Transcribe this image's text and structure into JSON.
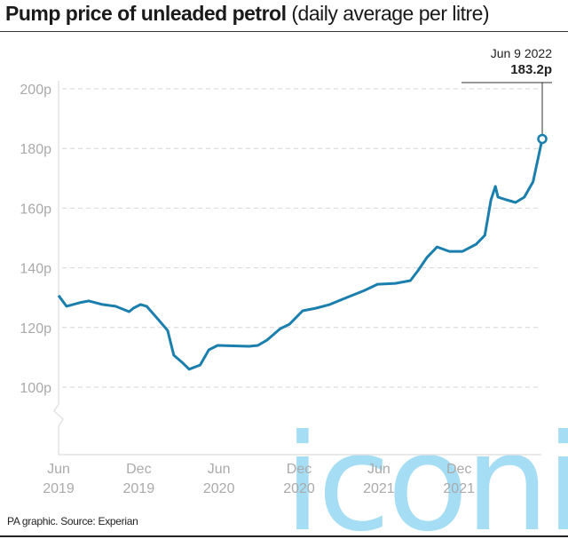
{
  "title": {
    "bold": "Pump price of unleaded petrol",
    "sub": " (daily average per litre)"
  },
  "source": "PA graphic. Source: Experian",
  "watermark": "iconic",
  "colors": {
    "line": "#1a7fad",
    "grid": "#d6d6d6",
    "axis": "#e3e3e3",
    "tick_text": "#aaaaaa"
  },
  "chart_data": {
    "type": "line",
    "title": "Pump price of unleaded petrol (daily average per litre)",
    "xlabel": "",
    "ylabel": "",
    "ylim": [
      77,
      200
    ],
    "y_axis_break": true,
    "grid": "horizontal dashed",
    "y_ticks": [
      "100p",
      "120p",
      "140p",
      "160p",
      "180p",
      "200p"
    ],
    "y_tick_values": [
      100,
      120,
      140,
      160,
      180,
      200
    ],
    "x_ticks": [
      {
        "date": "2019-06-01",
        "label1": "Jun",
        "label2": "2019"
      },
      {
        "date": "2019-12-01",
        "label1": "Dec",
        "label2": "2019"
      },
      {
        "date": "2020-06-01",
        "label1": "Jun",
        "label2": "2020"
      },
      {
        "date": "2020-12-01",
        "label1": "Dec",
        "label2": "2020"
      },
      {
        "date": "2021-06-01",
        "label1": "Jun",
        "label2": "2021"
      },
      {
        "date": "2021-12-01",
        "label1": "Dec",
        "label2": "2021"
      }
    ],
    "annotation": {
      "date": "2022-06-09",
      "date_label": "Jun 9 2022",
      "value": 183.2,
      "value_label": "183.2p"
    },
    "series": [
      {
        "points": [
          [
            "2019-06-01",
            130.7
          ],
          [
            "2019-06-19",
            127.1
          ],
          [
            "2019-07-19",
            128.3
          ],
          [
            "2019-08-09",
            128.9
          ],
          [
            "2019-09-09",
            127.7
          ],
          [
            "2019-10-09",
            127.1
          ],
          [
            "2019-11-09",
            125.3
          ],
          [
            "2019-11-19",
            126.5
          ],
          [
            "2019-12-05",
            127.7
          ],
          [
            "2019-12-19",
            127.1
          ],
          [
            "2020-01-15",
            122.6
          ],
          [
            "2020-02-05",
            119.0
          ],
          [
            "2020-02-19",
            110.7
          ],
          [
            "2020-03-09",
            108.3
          ],
          [
            "2020-03-25",
            106.0
          ],
          [
            "2020-04-19",
            107.4
          ],
          [
            "2020-05-09",
            112.5
          ],
          [
            "2020-05-29",
            114.0
          ],
          [
            "2020-08-09",
            113.7
          ],
          [
            "2020-08-29",
            114.0
          ],
          [
            "2020-09-19",
            115.8
          ],
          [
            "2020-10-19",
            119.6
          ],
          [
            "2020-11-09",
            121.1
          ],
          [
            "2020-12-09",
            125.6
          ],
          [
            "2021-01-09",
            126.5
          ],
          [
            "2021-02-09",
            127.7
          ],
          [
            "2021-03-19",
            130.0
          ],
          [
            "2021-04-29",
            132.4
          ],
          [
            "2021-05-29",
            134.5
          ],
          [
            "2021-07-09",
            134.8
          ],
          [
            "2021-08-12",
            135.7
          ],
          [
            "2021-08-29",
            139.0
          ],
          [
            "2021-09-19",
            143.5
          ],
          [
            "2021-10-12",
            147.0
          ],
          [
            "2021-11-09",
            145.5
          ],
          [
            "2021-12-09",
            145.5
          ],
          [
            "2022-01-09",
            147.9
          ],
          [
            "2022-01-29",
            150.9
          ],
          [
            "2022-02-12",
            162.8
          ],
          [
            "2022-02-22",
            167.3
          ],
          [
            "2022-02-28",
            163.7
          ],
          [
            "2022-03-19",
            162.8
          ],
          [
            "2022-04-09",
            161.9
          ],
          [
            "2022-04-29",
            163.7
          ],
          [
            "2022-05-19",
            168.8
          ],
          [
            "2022-06-09",
            183.2
          ]
        ]
      }
    ]
  }
}
